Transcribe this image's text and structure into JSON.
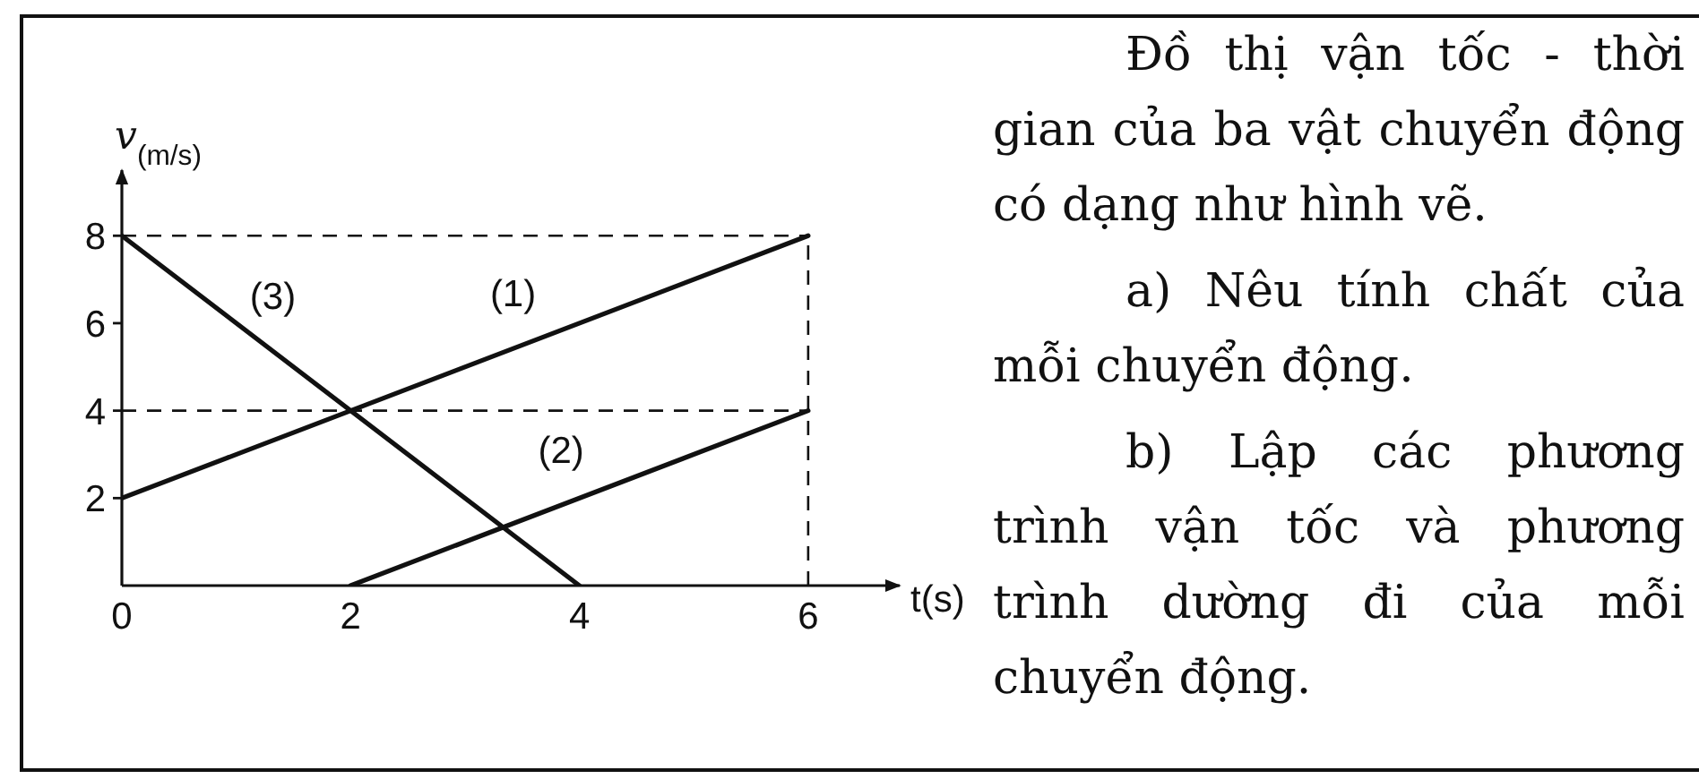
{
  "chart_data": {
    "type": "line",
    "xlabel": "t(s)",
    "ylabel": "v$_{(m/s)}$",
    "xlim": [
      0,
      6.8
    ],
    "ylim": [
      0,
      9.5
    ],
    "xticks": [
      0,
      2,
      4,
      6
    ],
    "yticks": [
      2,
      4,
      6,
      8
    ],
    "marker": "none",
    "line_style": "solid",
    "series": [
      {
        "name": "(1)",
        "color": "#111111",
        "x": [
          0,
          6
        ],
        "values": [
          2,
          8
        ]
      },
      {
        "name": "(2)",
        "color": "#111111",
        "x": [
          2,
          6
        ],
        "values": [
          0,
          4
        ]
      },
      {
        "name": "(3)",
        "color": "#111111",
        "x": [
          0,
          4
        ],
        "values": [
          8,
          0
        ]
      }
    ],
    "ref_lines": [
      {
        "axis": "y",
        "value": 8,
        "color": "#111111",
        "line_style": "dashed"
      },
      {
        "axis": "y",
        "value": 4,
        "color": "#111111",
        "line_style": "dashed"
      },
      {
        "axis": "x",
        "value": 6,
        "color": "#111111",
        "line_style": "dashed"
      }
    ],
    "annotations": [
      "Đồ thị vận tốc - thời gian của ba vật chuyển động có dạng như hình vẽ.",
      "a) Nêu tính chất của mỗi chuyển động.",
      "b) Lập các phương trình vận tốc và phương trình dường đi của mỗi chuyển động."
    ]
  }
}
